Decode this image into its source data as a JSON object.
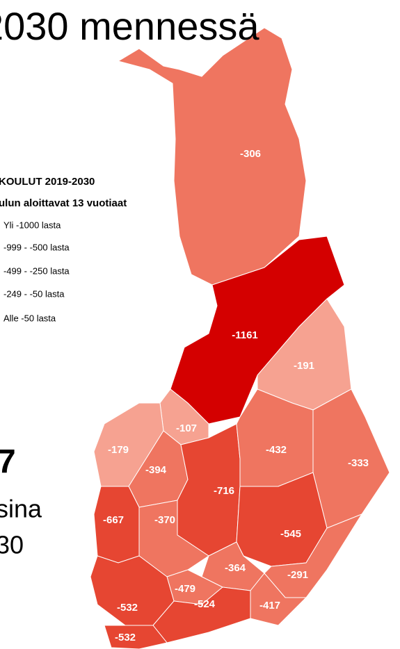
{
  "title": "2030 mennessä",
  "legend": {
    "title": "KOULUT 2019-2030",
    "subtitle": "ulun aloittavat 13 vuotiaat",
    "items": [
      "Yli -1000 lasta",
      "-999 - -500 lasta",
      "-499 - -250 lasta",
      "-249 - -50 lasta",
      "Alle -50 lasta"
    ]
  },
  "side_text": [
    "7",
    "sina",
    "30"
  ],
  "regions": [
    {
      "value": -306,
      "color": "#ef7560"
    },
    {
      "value": -1161,
      "color": "#d40000"
    },
    {
      "value": -191,
      "color": "#f6a291"
    },
    {
      "value": -107,
      "color": "#f6a291"
    },
    {
      "value": -179,
      "color": "#f6a291"
    },
    {
      "value": -394,
      "color": "#ef7560"
    },
    {
      "value": -716,
      "color": "#e64632"
    },
    {
      "value": -432,
      "color": "#ef7560"
    },
    {
      "value": -333,
      "color": "#ef7560"
    },
    {
      "value": -545,
      "color": "#e64632"
    },
    {
      "value": -667,
      "color": "#e64632"
    },
    {
      "value": -370,
      "color": "#ef7560"
    },
    {
      "value": -364,
      "color": "#ef7560"
    },
    {
      "value": -479,
      "color": "#ef7560"
    },
    {
      "value": -291,
      "color": "#ef7560"
    },
    {
      "value": -417,
      "color": "#ef7560"
    },
    {
      "value": -532,
      "color": "#e64632"
    },
    {
      "value": -524,
      "color": "#e64632"
    },
    {
      "value": -532,
      "color": "#e64632"
    }
  ]
}
